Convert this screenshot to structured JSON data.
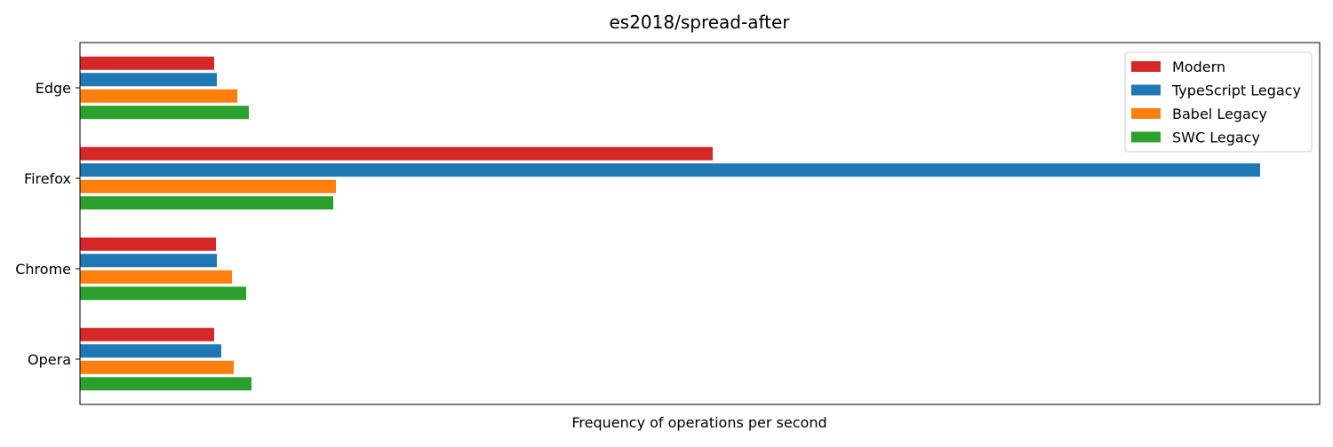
{
  "chart_data": {
    "type": "bar",
    "orientation": "horizontal",
    "title": "es2018/spread-after",
    "xlabel": "Frequency of operations per second",
    "ylabel": "",
    "categories": [
      "Edge",
      "Firefox",
      "Chrome",
      "Opera"
    ],
    "series": [
      {
        "name": "Modern",
        "color": "#d62728",
        "values": [
          151,
          712,
          153,
          151
        ]
      },
      {
        "name": "TypeScript Legacy",
        "color": "#1f77b4",
        "values": [
          154,
          1328,
          154,
          159
        ]
      },
      {
        "name": "Babel Legacy",
        "color": "#ff7f0e",
        "values": [
          177,
          288,
          171,
          173
        ]
      },
      {
        "name": "SWC Legacy",
        "color": "#2ca02c",
        "values": [
          190,
          285,
          187,
          193
        ]
      }
    ],
    "xlim": [
      0,
      1395
    ],
    "x_ticks_visible": false,
    "grid": false,
    "legend_position": "top-right"
  }
}
